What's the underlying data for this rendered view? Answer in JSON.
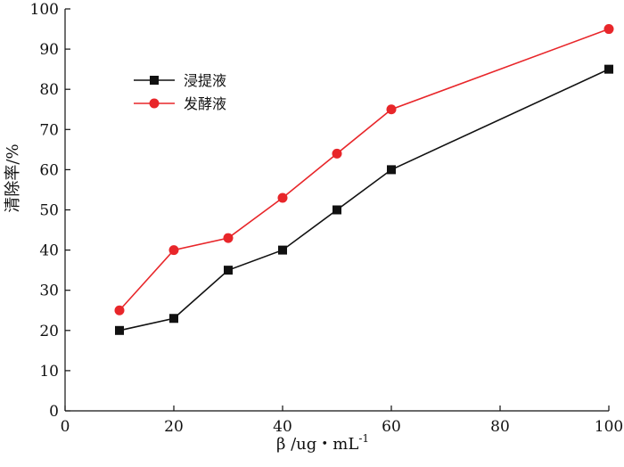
{
  "chart_data": {
    "type": "line",
    "title": "",
    "xlabel": "β /ug・mL",
    "xlabel_superscript": "-1",
    "ylabel": "清除率/%",
    "xlim": [
      0,
      100
    ],
    "ylim": [
      0,
      100
    ],
    "xticks": [
      0,
      20,
      40,
      60,
      80,
      100
    ],
    "yticks": [
      0,
      10,
      20,
      30,
      40,
      50,
      60,
      70,
      80,
      90,
      100
    ],
    "grid": false,
    "legend_position": "upper-left",
    "series": [
      {
        "name": "浸提液",
        "color": "#111111",
        "marker": "square",
        "x": [
          10,
          20,
          30,
          40,
          50,
          60,
          100
        ],
        "y": [
          20,
          23,
          35,
          40,
          50,
          60,
          85
        ]
      },
      {
        "name": "发酵液",
        "color": "#e8262a",
        "marker": "circle",
        "x": [
          10,
          20,
          30,
          40,
          50,
          60,
          100
        ],
        "y": [
          25,
          40,
          43,
          53,
          64,
          75,
          95
        ]
      }
    ]
  }
}
